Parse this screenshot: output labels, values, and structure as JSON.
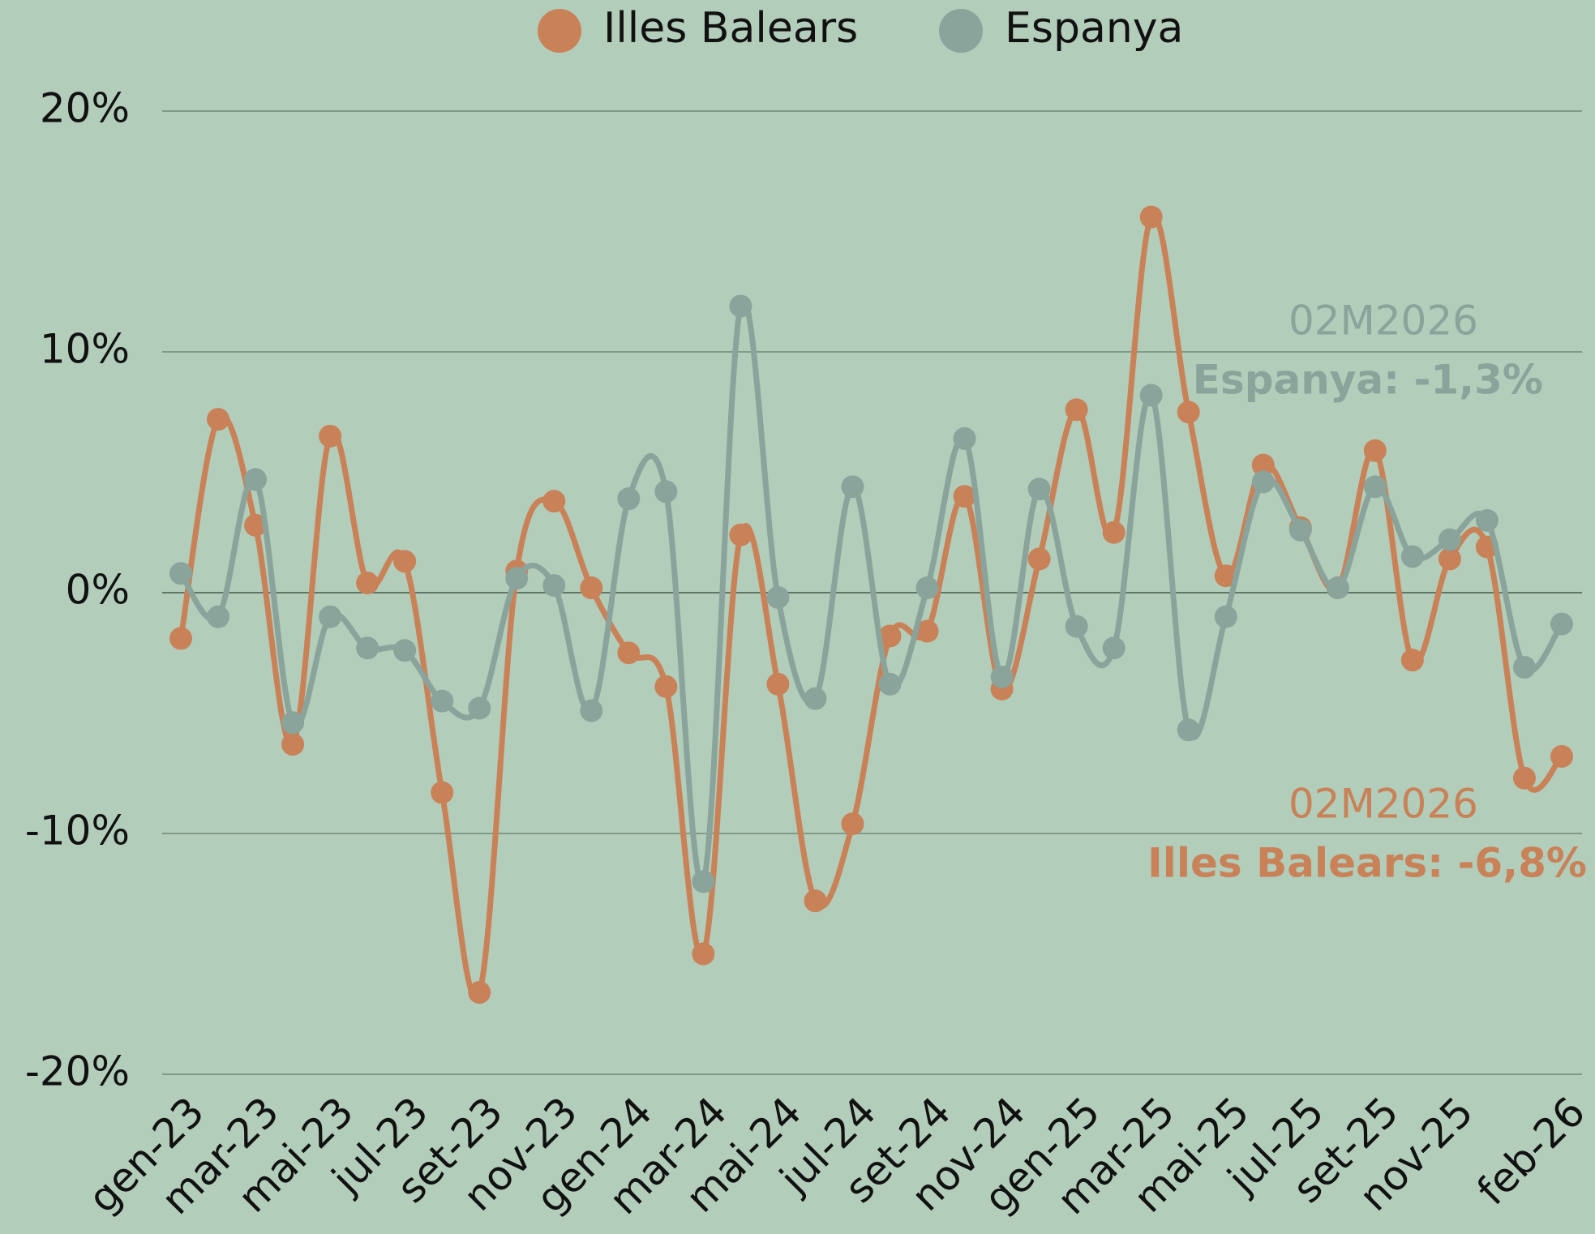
{
  "chart_data": {
    "type": "line",
    "categories": [
      "gen-23",
      null,
      "mar-23",
      null,
      "mai-23",
      null,
      "jul-23",
      null,
      "set-23",
      null,
      "nov-23",
      null,
      "gen-24",
      null,
      "mar-24",
      null,
      "mai-24",
      null,
      "jul-24",
      null,
      "set-24",
      null,
      "nov-24",
      null,
      "gen-25",
      null,
      "mar-25",
      null,
      "mai-25",
      null,
      "jul-25",
      null,
      "set-25",
      null,
      "nov-25",
      null,
      null,
      "feb-26"
    ],
    "series": [
      {
        "name": "Illes Balears",
        "color": "#c98157",
        "values": [
          -1.9,
          7.2,
          2.8,
          -6.3,
          6.5,
          0.4,
          1.3,
          -8.3,
          -16.6,
          0.9,
          3.8,
          0.2,
          -2.5,
          -3.9,
          -15.0,
          2.4,
          -3.8,
          -12.8,
          -9.6,
          -1.8,
          -1.6,
          4.0,
          -4.0,
          1.4,
          7.6,
          2.5,
          15.6,
          7.5,
          0.7,
          5.3,
          2.7,
          0.2,
          5.9,
          -2.8,
          1.4,
          1.9,
          -7.7,
          -6.8
        ]
      },
      {
        "name": "Espanya",
        "color": "#8aa39b",
        "values": [
          0.8,
          -1.0,
          4.7,
          -5.4,
          -1.0,
          -2.3,
          -2.4,
          -4.5,
          -4.8,
          0.6,
          0.3,
          -4.9,
          3.9,
          4.2,
          -12.0,
          11.9,
          -0.2,
          -4.4,
          4.4,
          -3.8,
          0.2,
          6.4,
          -3.5,
          4.3,
          -1.4,
          -2.3,
          8.2,
          -5.7,
          -1.0,
          4.6,
          2.6,
          0.2,
          4.4,
          1.5,
          2.2,
          3.0,
          -3.1,
          -1.3
        ]
      }
    ],
    "ylim": [
      -20,
      20
    ],
    "yticks": [
      {
        "value": 20,
        "label": "20%"
      },
      {
        "value": 10,
        "label": "10%"
      },
      {
        "value": 0,
        "label": "0%"
      },
      {
        "value": -10,
        "label": "-10%"
      },
      {
        "value": -20,
        "label": "-20%"
      }
    ],
    "grid": true,
    "legend": "top",
    "annotations": [
      {
        "text": "02M2026",
        "series": 1
      },
      {
        "text": "Espanya: -1,3%",
        "series": 1
      },
      {
        "text": "02M2026",
        "series": 0
      },
      {
        "text": "Illes Balears: -6,8%",
        "series": 0
      }
    ]
  }
}
